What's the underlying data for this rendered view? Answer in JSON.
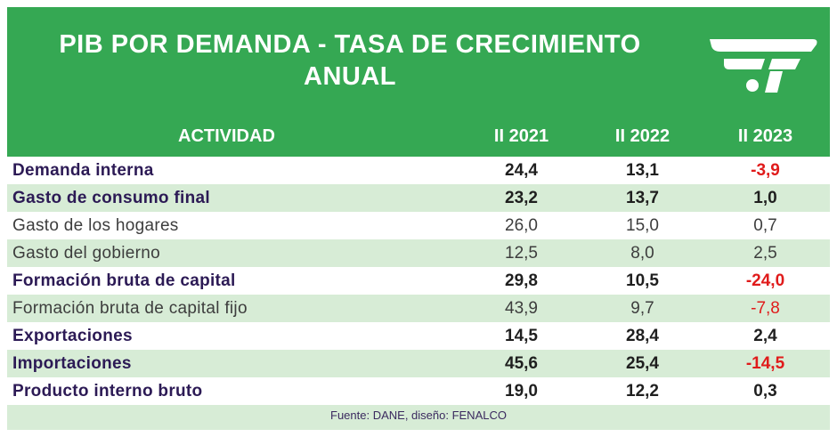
{
  "title_line1": "PIB POR DEMANDA - TASA DE CRECIMIENTO",
  "title_line2": "ANUAL",
  "logo_icon": "fenalco-logo-icon",
  "columns": {
    "activity": "ACTIVIDAD",
    "y1": "II 2021",
    "y2": "II 2022",
    "y3": "II 2023"
  },
  "rows": [
    {
      "label": "Demanda interna",
      "v1": "24,4",
      "v2": "13,1",
      "v3": "-3,9",
      "bold": true
    },
    {
      "label": "Gasto de consumo final",
      "v1": "23,2",
      "v2": "13,7",
      "v3": "1,0",
      "bold": true
    },
    {
      "label": "Gasto de los hogares",
      "v1": "26,0",
      "v2": "15,0",
      "v3": "0,7",
      "bold": false
    },
    {
      "label": "Gasto del gobierno",
      "v1": "12,5",
      "v2": "8,0",
      "v3": "2,5",
      "bold": false
    },
    {
      "label": "Formación bruta de capital",
      "v1": "29,8",
      "v2": "10,5",
      "v3": "-24,0",
      "bold": true
    },
    {
      "label": "Formación bruta de capital fijo",
      "v1": "43,9",
      "v2": "9,7",
      "v3": "-7,8",
      "bold": false
    },
    {
      "label": "Exportaciones",
      "v1": "14,5",
      "v2": "28,4",
      "v3": "2,4",
      "bold": true
    },
    {
      "label": "Importaciones",
      "v1": "45,6",
      "v2": "25,4",
      "v3": "-14,5",
      "bold": true
    },
    {
      "label": "Producto interno bruto",
      "v1": "19,0",
      "v2": "12,2",
      "v3": "0,3",
      "bold": true
    }
  ],
  "footer": "Fuente: DANE, diseño: FENALCO",
  "colors": {
    "header_green": "#35a853",
    "stripe_green": "#d7ecd6",
    "label_purple": "#2c1a55",
    "negative_red": "#e01b1b"
  }
}
